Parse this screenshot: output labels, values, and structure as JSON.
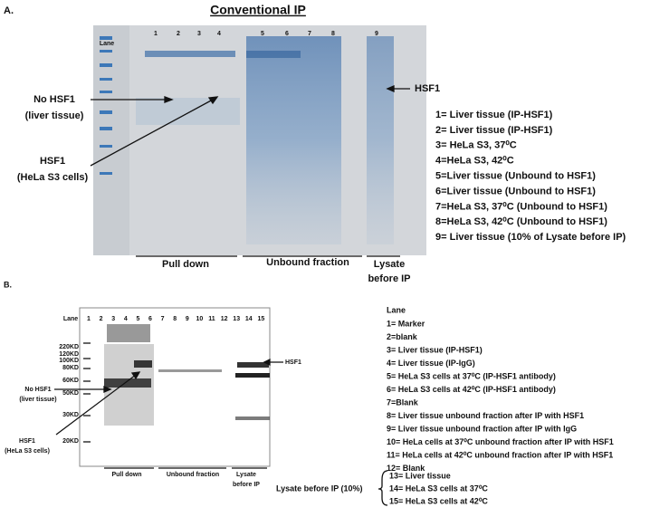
{
  "panel_a": {
    "label": "A.",
    "title": "Conventional IP",
    "lane_header": "Lane",
    "lanes": [
      "1",
      "2",
      "3",
      "4",
      "5",
      "6",
      "7",
      "8",
      "9"
    ],
    "left_annotations": [
      "No HSF1",
      "(liver tissue)",
      "HSF1",
      "(HeLa S3 cells)"
    ],
    "right_annotation": "HSF1",
    "legend": [
      "1= Liver tissue (IP-HSF1)",
      "2= Liver tissue (IP-HSF1)",
      "3= HeLa S3, 37⁰C",
      "4=HeLa S3, 42⁰C",
      "5=Liver tissue (Unbound to HSF1)",
      "6=Liver tissue (Unbound to HSF1)",
      "7=HeLa S3, 37⁰C (Unbound to HSF1)",
      "8=HeLa S3, 42⁰C (Unbound to HSF1)",
      "9= Liver tissue  (10% of Lysate before IP)"
    ],
    "bottom_labels": [
      "Pull down",
      "Unbound fraction",
      "Lysate",
      "before IP"
    ]
  },
  "panel_b": {
    "label": "B.",
    "lane_header": "Lane",
    "lanes": [
      "1",
      "2",
      "3",
      "4",
      "5",
      "6",
      "7",
      "8",
      "9",
      "10",
      "11",
      "12",
      "13",
      "14",
      "15"
    ],
    "markers": [
      "220KD",
      "120KD",
      "100KD",
      "80KD",
      "60KD",
      "50KD",
      "30KD",
      "20KD"
    ],
    "left_annotations": [
      "No HSF1",
      "(liver tissue)",
      "HSF1",
      "(HeLa S3 cells)"
    ],
    "right_annotation": "HSF1",
    "bottom_labels": [
      "Pull down",
      "Unbound fraction",
      "Lysate",
      "before IP"
    ],
    "legend_header": "Lane",
    "legend": [
      "1= Marker",
      "2=blank",
      "3= Liver tissue (IP-HSF1)",
      "4= Liver tissue (IP-IgG)",
      "5= HeLa S3 cells at 37⁰C (IP-HSF1 antibody)",
      "6= HeLa S3 cells at 42⁰C (IP-HSF1 antibody)",
      "7=Blank",
      "8= Liver tissue unbound fraction after IP with HSF1",
      "9= Liver tissue unbound fraction after IP with IgG",
      "10= HeLa cells at 37⁰C unbound fraction after IP with HSF1",
      "11= HeLa cells at 42⁰C unbound fraction after IP with HSF1",
      "12= Blank"
    ],
    "lysate_group_label": "Lysate before IP (10%)",
    "lysate_group": [
      "13= Liver tissue",
      "14= HeLa S3 cells at 37⁰C",
      "15= HeLa S3  cells at 42⁰C"
    ]
  }
}
